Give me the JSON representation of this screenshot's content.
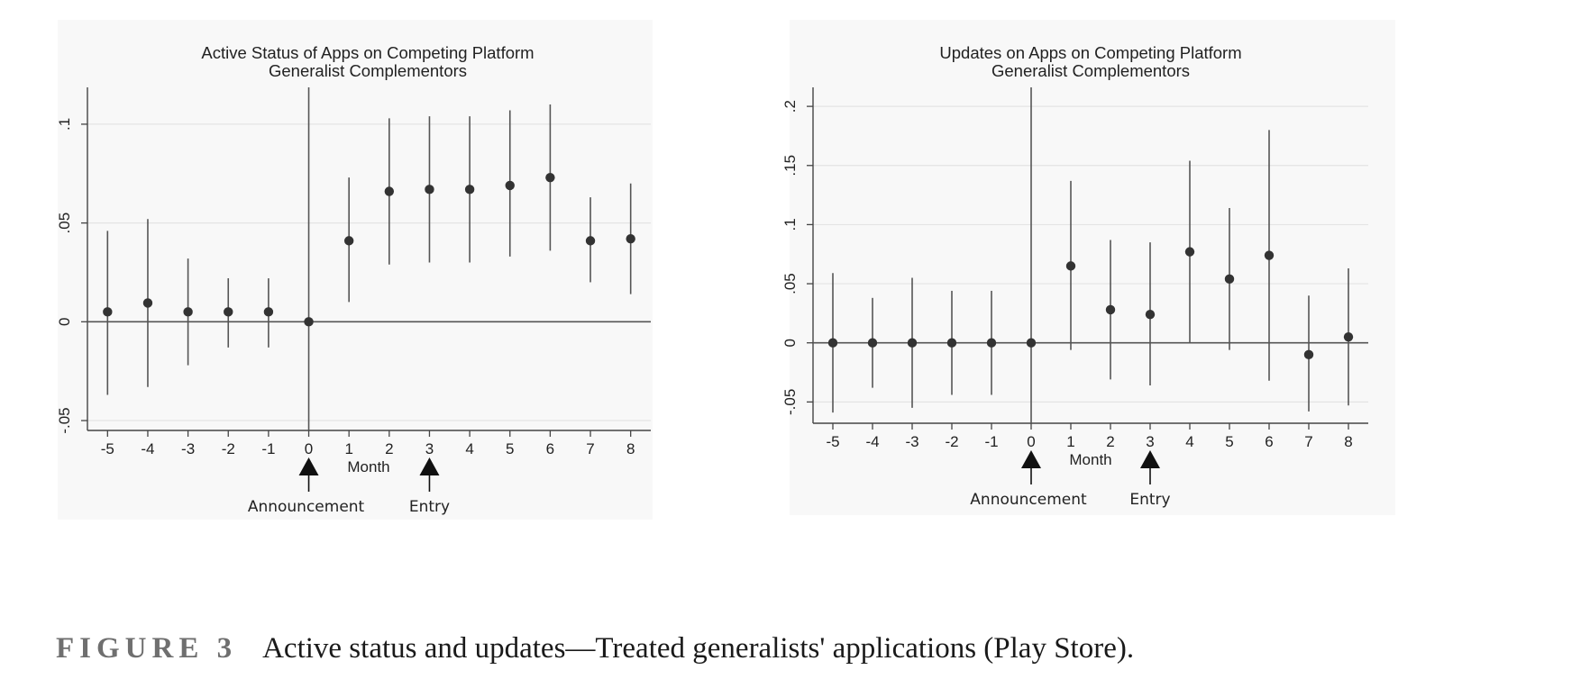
{
  "chart_data": [
    {
      "type": "scatter",
      "subtype": "coefficient-plot-with-confidence-intervals",
      "title": "Active Status of Apps on Competing Platform",
      "subtitle": "Generalist Complementors",
      "xlabel": "Month",
      "ylabel": "",
      "x": [
        -5,
        -4,
        -3,
        -2,
        -1,
        0,
        1,
        2,
        3,
        4,
        5,
        6,
        7,
        8
      ],
      "x_tick_labels": [
        "-5",
        "-4",
        "-3",
        "-2",
        "-1",
        "0",
        "1",
        "2",
        "3",
        "4",
        "5",
        "6",
        "7",
        "8"
      ],
      "y_ticks": [
        -0.05,
        0,
        0.05,
        0.1
      ],
      "y_tick_labels": [
        "-.05",
        "0",
        ".05",
        ".1"
      ],
      "ylim": [
        -0.055,
        0.115
      ],
      "xlim": [
        -5.5,
        8.5
      ],
      "grid": true,
      "series": [
        {
          "estimate": [
            0.005,
            0.0095,
            0.005,
            0.005,
            0.005,
            0.0,
            0.041,
            0.066,
            0.067,
            0.067,
            0.069,
            0.073,
            0.041,
            0.042
          ],
          "ci_low": [
            -0.037,
            -0.033,
            -0.022,
            -0.013,
            -0.013,
            0.0,
            0.01,
            0.029,
            0.03,
            0.03,
            0.033,
            0.036,
            0.02,
            0.014
          ],
          "ci_high": [
            0.046,
            0.052,
            0.032,
            0.022,
            0.022,
            0.0,
            0.073,
            0.103,
            0.104,
            0.104,
            0.107,
            0.11,
            0.063,
            0.07
          ]
        }
      ],
      "reference_lines": {
        "horizontal_y": 0,
        "vertical_x": 0
      },
      "annotations": [
        {
          "x": 0,
          "label": "Announcement"
        },
        {
          "x": 3,
          "label": "Entry"
        }
      ]
    },
    {
      "type": "scatter",
      "subtype": "coefficient-plot-with-confidence-intervals",
      "title": "Updates on Apps on Competing Platform",
      "subtitle": "Generalist Complementors",
      "xlabel": "Month",
      "ylabel": "",
      "x": [
        -5,
        -4,
        -3,
        -2,
        -1,
        0,
        1,
        2,
        3,
        4,
        5,
        6,
        7,
        8
      ],
      "x_tick_labels": [
        "-5",
        "-4",
        "-3",
        "-2",
        "-1",
        "0",
        "1",
        "2",
        "3",
        "4",
        "5",
        "6",
        "7",
        "8"
      ],
      "y_ticks": [
        -0.05,
        0,
        0.05,
        0.1,
        0.15,
        0.2
      ],
      "y_tick_labels": [
        "-.05",
        "0",
        ".05",
        ".1",
        ".15",
        ".2"
      ],
      "ylim": [
        -0.068,
        0.21
      ],
      "xlim": [
        -5.5,
        8.5
      ],
      "grid": true,
      "series": [
        {
          "estimate": [
            0.0,
            0.0,
            0.0,
            0.0,
            0.0,
            0.0,
            0.065,
            0.028,
            0.024,
            0.077,
            0.054,
            0.074,
            -0.01,
            0.005
          ],
          "ci_low": [
            -0.059,
            -0.038,
            -0.055,
            -0.044,
            -0.044,
            0.0,
            -0.006,
            -0.031,
            -0.036,
            0.0,
            -0.006,
            -0.032,
            -0.058,
            -0.053
          ],
          "ci_high": [
            0.059,
            0.038,
            0.055,
            0.044,
            0.044,
            0.0,
            0.137,
            0.087,
            0.085,
            0.154,
            0.114,
            0.18,
            0.04,
            0.063
          ]
        }
      ],
      "reference_lines": {
        "horizontal_y": 0,
        "vertical_x": 0
      },
      "annotations": [
        {
          "x": 0,
          "label": "Announcement"
        },
        {
          "x": 3,
          "label": "Entry"
        }
      ]
    }
  ],
  "caption": {
    "label": "FIGURE 3",
    "text": "Active status and updates—Treated generalists' applications (Play Store)."
  }
}
